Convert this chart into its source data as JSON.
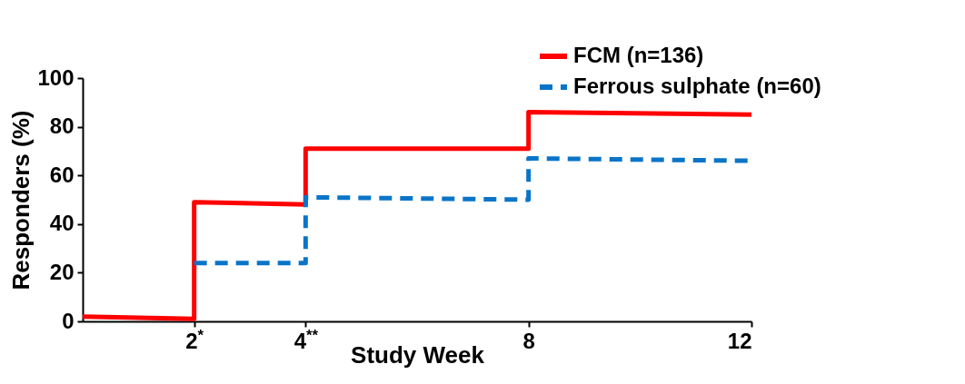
{
  "chart_data": {
    "type": "line",
    "xlabel": "Study Week",
    "ylabel": "Responders (%)",
    "xlim": [
      0,
      12
    ],
    "xticks": [
      {
        "value": 2,
        "label": "2$^{*}$"
      },
      {
        "value": 4,
        "label": "4$^{**}$"
      },
      8,
      12
    ],
    "ylim": [
      0,
      100
    ],
    "yticks": [
      0,
      20,
      40,
      60,
      80,
      100
    ],
    "grid": false,
    "legend": "top right",
    "marker": "none",
    "series": [
      {
        "name": "FCM (n=136)",
        "color": "#ff0000",
        "line_style": "solid",
        "x": [
          0,
          2,
          2,
          4,
          4,
          8,
          8,
          12
        ],
        "values": [
          2,
          1,
          49,
          48,
          71,
          71,
          86,
          85
        ]
      },
      {
        "name": "Ferrous sulphate (n=60)",
        "color": "#0a75c8",
        "line_style": "dashed",
        "x": [
          2,
          4,
          4,
          8,
          8,
          12
        ],
        "values": [
          24,
          24,
          51,
          50,
          67,
          66
        ]
      }
    ]
  }
}
